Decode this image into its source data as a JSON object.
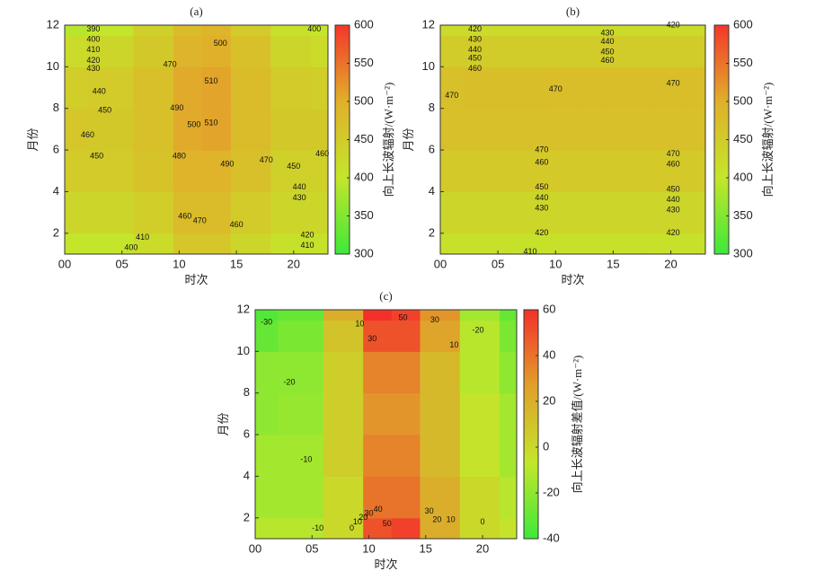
{
  "chart_data": [
    {
      "type": "contour",
      "title": "(a)",
      "xlabel": "时次",
      "ylabel": "月份",
      "colorbar_label": "向上长波辐射/(W·m⁻²)",
      "x": [
        0,
        4,
        8,
        11,
        13,
        16,
        20,
        23
      ],
      "y": [
        1,
        3,
        5,
        7,
        9,
        11,
        12
      ],
      "z": [
        [
          400,
          400,
          420,
          460,
          460,
          430,
          410,
          410
        ],
        [
          430,
          430,
          445,
          480,
          480,
          450,
          430,
          430
        ],
        [
          450,
          450,
          465,
          495,
          495,
          470,
          440,
          440
        ],
        [
          460,
          455,
          470,
          505,
          510,
          480,
          455,
          455
        ],
        [
          445,
          450,
          470,
          505,
          510,
          480,
          450,
          445
        ],
        [
          420,
          430,
          455,
          490,
          500,
          470,
          430,
          420
        ],
        [
          390,
          400,
          440,
          480,
          490,
          450,
          410,
          400
        ]
      ],
      "xlim": [
        0,
        23
      ],
      "ylim": [
        1,
        12
      ],
      "xticks": [
        {
          "value": 0,
          "label": "00"
        },
        {
          "value": 5,
          "label": "05"
        },
        10,
        15,
        20
      ],
      "yticks": [
        2,
        4,
        6,
        8,
        10,
        12
      ],
      "clim": [
        300,
        600
      ],
      "cticks": [
        300,
        350,
        400,
        450,
        500,
        550,
        600
      ],
      "colormap": [
        "#3ee83a",
        "#c4e62a",
        "#e0b02a",
        "#f4362a"
      ],
      "contour_labels": [
        {
          "value": 390,
          "x": 2.5,
          "y": 11.8
        },
        {
          "value": 400,
          "x": 2.5,
          "y": 11.3
        },
        {
          "value": 410,
          "x": 2.5,
          "y": 10.8
        },
        {
          "value": 420,
          "x": 2.5,
          "y": 10.3
        },
        {
          "value": 430,
          "x": 2.5,
          "y": 9.9
        },
        {
          "value": 440,
          "x": 3,
          "y": 8.8
        },
        {
          "value": 450,
          "x": 3.5,
          "y": 7.9
        },
        {
          "value": 460,
          "x": 2,
          "y": 6.7
        },
        {
          "value": 450,
          "x": 2.8,
          "y": 5.7
        },
        {
          "value": 470,
          "x": 9.2,
          "y": 10.1
        },
        {
          "value": 480,
          "x": 10,
          "y": 5.7
        },
        {
          "value": 490,
          "x": 9.8,
          "y": 8
        },
        {
          "value": 500,
          "x": 11.3,
          "y": 7.2
        },
        {
          "value": 510,
          "x": 12.8,
          "y": 9.3
        },
        {
          "value": 510,
          "x": 12.8,
          "y": 7.3
        },
        {
          "value": 500,
          "x": 13.6,
          "y": 11.1
        },
        {
          "value": 490,
          "x": 14.2,
          "y": 5.3
        },
        {
          "value": 470,
          "x": 17.6,
          "y": 5.5
        },
        {
          "value": 460,
          "x": 22.5,
          "y": 5.8
        },
        {
          "value": 450,
          "x": 20,
          "y": 5.2
        },
        {
          "value": 440,
          "x": 20.5,
          "y": 4.2
        },
        {
          "value": 430,
          "x": 20.5,
          "y": 3.7
        },
        {
          "value": 420,
          "x": 21.2,
          "y": 1.9
        },
        {
          "value": 410,
          "x": 21.2,
          "y": 1.4
        },
        {
          "value": 400,
          "x": 5.8,
          "y": 1.3
        },
        {
          "value": 410,
          "x": 6.8,
          "y": 1.8
        },
        {
          "value": 460,
          "x": 10.5,
          "y": 2.8
        },
        {
          "value": 470,
          "x": 11.8,
          "y": 2.6
        },
        {
          "value": 460,
          "x": 15,
          "y": 2.4
        },
        {
          "value": 400,
          "x": 21.8,
          "y": 11.8
        }
      ]
    },
    {
      "type": "contour",
      "title": "(b)",
      "xlabel": "时次",
      "ylabel": "月份",
      "colorbar_label": "向上长波辐射/(W·m⁻²)",
      "x": [
        0,
        4,
        8,
        11,
        13,
        16,
        20,
        23
      ],
      "y": [
        1,
        3,
        5,
        7,
        9,
        11,
        12
      ],
      "z": [
        [
          410,
          410,
          410,
          410,
          410,
          410,
          410,
          410
        ],
        [
          430,
          430,
          430,
          430,
          430,
          430,
          430,
          430
        ],
        [
          452,
          452,
          452,
          452,
          452,
          452,
          452,
          452
        ],
        [
          470,
          470,
          470,
          470,
          470,
          470,
          470,
          470
        ],
        [
          470,
          472,
          472,
          474,
          475,
          475,
          475,
          475
        ],
        [
          448,
          448,
          448,
          448,
          448,
          448,
          448,
          448
        ],
        [
          420,
          420,
          420,
          420,
          420,
          420,
          420,
          420
        ]
      ],
      "xlim": [
        0,
        23
      ],
      "ylim": [
        1,
        12
      ],
      "xticks": [
        {
          "value": 0,
          "label": "00"
        },
        {
          "value": 5,
          "label": "05"
        },
        10,
        15,
        20
      ],
      "yticks": [
        2,
        4,
        6,
        8,
        10,
        12
      ],
      "clim": [
        300,
        600
      ],
      "cticks": [
        300,
        350,
        400,
        450,
        500,
        550,
        600
      ],
      "colormap": [
        "#3ee83a",
        "#c4e62a",
        "#e0b02a",
        "#f4362a"
      ],
      "contour_labels": [
        {
          "value": 420,
          "x": 3,
          "y": 11.8
        },
        {
          "value": 430,
          "x": 3,
          "y": 11.3
        },
        {
          "value": 440,
          "x": 3,
          "y": 10.8
        },
        {
          "value": 450,
          "x": 3,
          "y": 10.4
        },
        {
          "value": 460,
          "x": 3,
          "y": 9.9
        },
        {
          "value": 420,
          "x": 20.2,
          "y": 12
        },
        {
          "value": 430,
          "x": 14.5,
          "y": 11.6
        },
        {
          "value": 440,
          "x": 14.5,
          "y": 11.2
        },
        {
          "value": 450,
          "x": 14.5,
          "y": 10.7
        },
        {
          "value": 460,
          "x": 14.5,
          "y": 10.3
        },
        {
          "value": 470,
          "x": 1,
          "y": 8.6
        },
        {
          "value": 470,
          "x": 10,
          "y": 8.9
        },
        {
          "value": 470,
          "x": 20.2,
          "y": 9.2
        },
        {
          "value": 470,
          "x": 8.8,
          "y": 6
        },
        {
          "value": 460,
          "x": 8.8,
          "y": 5.4
        },
        {
          "value": 450,
          "x": 8.8,
          "y": 4.2
        },
        {
          "value": 440,
          "x": 8.8,
          "y": 3.7
        },
        {
          "value": 430,
          "x": 8.8,
          "y": 3.2
        },
        {
          "value": 420,
          "x": 8.8,
          "y": 2
        },
        {
          "value": 410,
          "x": 7.8,
          "y": 1.1
        },
        {
          "value": 470,
          "x": 20.2,
          "y": 5.8
        },
        {
          "value": 460,
          "x": 20.2,
          "y": 5.3
        },
        {
          "value": 450,
          "x": 20.2,
          "y": 4.1
        },
        {
          "value": 440,
          "x": 20.2,
          "y": 3.6
        },
        {
          "value": 430,
          "x": 20.2,
          "y": 3.1
        },
        {
          "value": 420,
          "x": 20.2,
          "y": 2
        }
      ]
    },
    {
      "type": "contour",
      "title": "(c)",
      "xlabel": "时次",
      "ylabel": "月份",
      "colorbar_label": "向上长波辐射差值/(W·m⁻²)",
      "x": [
        0,
        4,
        8,
        11,
        13,
        16,
        20,
        23
      ],
      "y": [
        1,
        3,
        5,
        7,
        9,
        11,
        12
      ],
      "z": [
        [
          -10,
          -10,
          0,
          50,
          55,
          20,
          0,
          -5
        ],
        [
          -15,
          -15,
          0,
          40,
          40,
          20,
          0,
          -10
        ],
        [
          -15,
          -15,
          5,
          35,
          35,
          15,
          -5,
          -15
        ],
        [
          -20,
          -18,
          5,
          30,
          30,
          15,
          -5,
          -15
        ],
        [
          -20,
          -20,
          5,
          35,
          35,
          15,
          -10,
          -20
        ],
        [
          -30,
          -25,
          10,
          50,
          50,
          25,
          -10,
          -25
        ],
        [
          -35,
          -30,
          20,
          60,
          55,
          30,
          -15,
          -30
        ]
      ],
      "xlim": [
        0,
        23
      ],
      "ylim": [
        1,
        12
      ],
      "xticks": [
        {
          "value": 0,
          "label": "00"
        },
        {
          "value": 5,
          "label": "05"
        },
        10,
        15,
        20
      ],
      "yticks": [
        2,
        4,
        6,
        8,
        10,
        12
      ],
      "clim": [
        -40,
        60
      ],
      "cticks": [
        -40,
        -20,
        0,
        20,
        40,
        60
      ],
      "colormap": [
        "#3ee83a",
        "#c4e62a",
        "#e0a02a",
        "#f4302a"
      ],
      "contour_labels": [
        {
          "value": -30,
          "x": 1,
          "y": 11.4
        },
        {
          "value": -20,
          "x": 3,
          "y": 8.5
        },
        {
          "value": -10,
          "x": 4.5,
          "y": 4.8
        },
        {
          "value": -10,
          "x": 5.5,
          "y": 1.5
        },
        {
          "value": 0,
          "x": 8.5,
          "y": 1.5
        },
        {
          "value": 10,
          "x": 9,
          "y": 1.8
        },
        {
          "value": 20,
          "x": 9.5,
          "y": 2
        },
        {
          "value": 30,
          "x": 10,
          "y": 2.2
        },
        {
          "value": 40,
          "x": 10.8,
          "y": 2.4
        },
        {
          "value": 50,
          "x": 11.6,
          "y": 1.7
        },
        {
          "value": 50,
          "x": 13,
          "y": 11.6
        },
        {
          "value": 30,
          "x": 10.3,
          "y": 10.6
        },
        {
          "value": 10,
          "x": 9.2,
          "y": 11.3
        },
        {
          "value": 30,
          "x": 15.3,
          "y": 2.3
        },
        {
          "value": 20,
          "x": 16,
          "y": 1.9
        },
        {
          "value": 10,
          "x": 17.2,
          "y": 1.9
        },
        {
          "value": 0,
          "x": 20,
          "y": 1.8
        },
        {
          "value": 10,
          "x": 17.5,
          "y": 10.3
        },
        {
          "value": -20,
          "x": 19.6,
          "y": 11
        },
        {
          "value": 30,
          "x": 15.8,
          "y": 11.5
        }
      ]
    }
  ]
}
